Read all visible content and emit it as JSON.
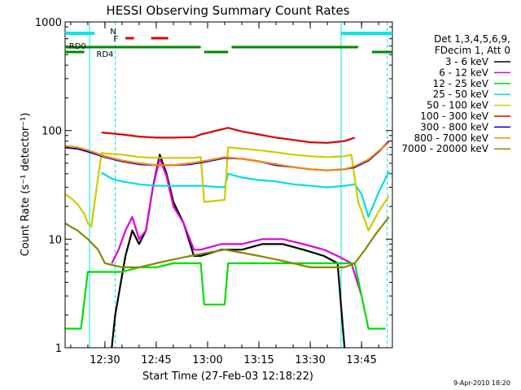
{
  "chart_data": {
    "type": "line",
    "title": "HESSI Observing Summary Count Rates",
    "xlabel": "Start Time (27-Feb-03 12:18:22)",
    "ylabel": "Count Rate (s⁻¹ detector⁻¹)",
    "y_scale": "log",
    "ylim": [
      1,
      1000
    ],
    "xlim": [
      "12:18:22",
      "13:54:00"
    ],
    "x_ticks": [
      "12:30",
      "12:45",
      "13:00",
      "13:15",
      "13:30",
      "13:45"
    ],
    "y_ticks": [
      "1",
      "10",
      "100",
      "1000"
    ],
    "grid": false,
    "legend_header": [
      "Det 1,3,4,5,6,9,",
      "FDecim 1, Att 0"
    ],
    "legend_position": "right",
    "footer_date": "9-Apr-2010 18:20",
    "flags": {
      "N_label": "N",
      "F_label": "F",
      "RD0_label": "RD0",
      "RD4_label": "RD4"
    },
    "series": [
      {
        "name": "3 - 6 keV",
        "color": "#000000",
        "points": [
          [
            "12:32:00",
            1
          ],
          [
            "12:33:00",
            2
          ],
          [
            "12:36:00",
            7
          ],
          [
            "12:38:00",
            12
          ],
          [
            "12:40:00",
            9
          ],
          [
            "12:42:00",
            12
          ],
          [
            "12:44:00",
            30
          ],
          [
            "12:46:00",
            60
          ],
          [
            "12:48:00",
            40
          ],
          [
            "12:50:00",
            22
          ],
          [
            "12:53:00",
            14
          ],
          [
            "12:56:00",
            7
          ],
          [
            "12:58:00",
            7
          ],
          [
            "13:04:00",
            8
          ],
          [
            "13:10:00",
            8
          ],
          [
            "13:16:00",
            9
          ],
          [
            "13:22:00",
            9
          ],
          [
            "13:28:00",
            8
          ],
          [
            "13:34:00",
            7
          ],
          [
            "13:38:00",
            6
          ],
          [
            "13:40:00",
            1
          ]
        ]
      },
      {
        "name": "6 - 12 keV",
        "color": "#dd00dd",
        "points": [
          [
            "12:32:00",
            6
          ],
          [
            "12:34:00",
            8
          ],
          [
            "12:36:00",
            12
          ],
          [
            "12:38:00",
            16
          ],
          [
            "12:40:00",
            10
          ],
          [
            "12:42:00",
            12
          ],
          [
            "12:44:00",
            30
          ],
          [
            "12:46:00",
            55
          ],
          [
            "12:48:00",
            38
          ],
          [
            "12:50:00",
            20
          ],
          [
            "12:53:00",
            14
          ],
          [
            "12:56:00",
            8
          ],
          [
            "12:58:00",
            8
          ],
          [
            "13:04:00",
            9
          ],
          [
            "13:10:00",
            9
          ],
          [
            "13:16:00",
            10
          ],
          [
            "13:22:00",
            10
          ],
          [
            "13:28:00",
            9
          ],
          [
            "13:34:00",
            8
          ],
          [
            "13:38:00",
            7
          ],
          [
            "13:42:00",
            6
          ],
          [
            "13:45:00",
            3
          ]
        ]
      },
      {
        "name": "12 - 25 keV",
        "color": "#00dd00",
        "points": [
          [
            "12:18:22",
            1.5
          ],
          [
            "12:23:00",
            1.5
          ],
          [
            "12:25:00",
            5
          ],
          [
            "12:30:00",
            5
          ],
          [
            "12:35:00",
            5
          ],
          [
            "12:40:00",
            5.5
          ],
          [
            "12:45:00",
            5.5
          ],
          [
            "12:50:00",
            6
          ],
          [
            "12:55:00",
            6
          ],
          [
            "12:58:00",
            6
          ],
          [
            "12:59:00",
            2.5
          ],
          [
            "13:05:00",
            2.5
          ],
          [
            "13:06:00",
            6
          ],
          [
            "13:15:00",
            6
          ],
          [
            "13:25:00",
            6
          ],
          [
            "13:35:00",
            6
          ],
          [
            "13:40:00",
            6
          ],
          [
            "13:43:00",
            6
          ],
          [
            "13:47:00",
            1.5
          ],
          [
            "13:52:00",
            1.5
          ]
        ]
      },
      {
        "name": "25 - 50 keV",
        "color": "#00dddd",
        "points": [
          [
            "12:29:00",
            41
          ],
          [
            "12:32:00",
            36
          ],
          [
            "12:35:00",
            34
          ],
          [
            "12:40:00",
            32
          ],
          [
            "12:45:00",
            31
          ],
          [
            "12:50:00",
            31
          ],
          [
            "12:56:00",
            31
          ],
          [
            "12:58:00",
            31
          ],
          [
            "13:05:00",
            30
          ],
          [
            "13:06:00",
            40
          ],
          [
            "13:10:00",
            37
          ],
          [
            "13:15:00",
            35
          ],
          [
            "13:20:00",
            34
          ],
          [
            "13:25:00",
            32
          ],
          [
            "13:30:00",
            31
          ],
          [
            "13:35:00",
            30
          ],
          [
            "13:40:00",
            31
          ],
          [
            "13:43:00",
            32
          ],
          [
            "13:45:00",
            26
          ],
          [
            "13:47:00",
            16
          ],
          [
            "13:50:00",
            27
          ],
          [
            "13:53:00",
            42
          ]
        ]
      },
      {
        "name": "50 - 100 keV",
        "color": "#cccc00",
        "points": [
          [
            "12:18:22",
            26
          ],
          [
            "12:20:00",
            24
          ],
          [
            "12:22:00",
            21
          ],
          [
            "12:24:00",
            17
          ],
          [
            "12:25:00",
            14
          ],
          [
            "12:26:00",
            13
          ],
          [
            "12:29:00",
            62
          ],
          [
            "12:35:00",
            60
          ],
          [
            "12:40:00",
            57
          ],
          [
            "12:45:00",
            56
          ],
          [
            "12:50:00",
            56
          ],
          [
            "12:56:00",
            56
          ],
          [
            "12:58:00",
            57
          ],
          [
            "12:59:00",
            22
          ],
          [
            "13:05:00",
            23
          ],
          [
            "13:06:00",
            70
          ],
          [
            "13:15:00",
            66
          ],
          [
            "13:20:00",
            63
          ],
          [
            "13:25:00",
            60
          ],
          [
            "13:30:00",
            58
          ],
          [
            "13:35:00",
            57
          ],
          [
            "13:40:00",
            58
          ],
          [
            "13:42:00",
            60
          ],
          [
            "13:44:00",
            22
          ],
          [
            "13:47:00",
            12
          ],
          [
            "13:50:00",
            18
          ],
          [
            "13:53:00",
            25
          ]
        ]
      },
      {
        "name": "100 - 300 keV",
        "color": "#dd0000",
        "points": [
          [
            "12:29:00",
            96
          ],
          [
            "12:35:00",
            92
          ],
          [
            "12:40:00",
            88
          ],
          [
            "12:45:00",
            86
          ],
          [
            "12:50:00",
            86
          ],
          [
            "12:56:00",
            87
          ],
          [
            "12:58:00",
            92
          ],
          [
            "13:06:00",
            106
          ],
          [
            "13:10:00",
            98
          ],
          [
            "13:15:00",
            92
          ],
          [
            "13:20:00",
            86
          ],
          [
            "13:25:00",
            82
          ],
          [
            "13:30:00",
            78
          ],
          [
            "13:35:00",
            77
          ],
          [
            "13:40:00",
            80
          ],
          [
            "13:43:00",
            86
          ]
        ]
      },
      {
        "name": "300 - 800 keV",
        "color": "#0000cc",
        "points": [
          [
            "12:18:22",
            70
          ],
          [
            "12:22:00",
            68
          ],
          [
            "12:25:00",
            64
          ],
          [
            "12:30:00",
            57
          ],
          [
            "12:35:00",
            52
          ],
          [
            "12:40:00",
            49
          ],
          [
            "12:45:00",
            48
          ],
          [
            "12:50:00",
            48
          ],
          [
            "12:55:00",
            49
          ],
          [
            "13:00:00",
            52
          ],
          [
            "13:05:00",
            56
          ],
          [
            "13:10:00",
            55
          ],
          [
            "13:15:00",
            52
          ],
          [
            "13:20:00",
            48
          ],
          [
            "13:25:00",
            46
          ],
          [
            "13:30:00",
            44
          ],
          [
            "13:35:00",
            43
          ],
          [
            "13:40:00",
            44
          ],
          [
            "13:43:00",
            46
          ],
          [
            "13:47:00",
            53
          ],
          [
            "13:50:00",
            64
          ],
          [
            "13:53:00",
            80
          ]
        ]
      },
      {
        "name": "800 - 7000 keV",
        "color": "#ff8800",
        "points": [
          [
            "12:18:22",
            72
          ],
          [
            "12:22:00",
            70
          ],
          [
            "12:25:00",
            66
          ],
          [
            "12:30:00",
            58
          ],
          [
            "12:35:00",
            53
          ],
          [
            "12:40:00",
            50
          ],
          [
            "12:45:00",
            48
          ],
          [
            "12:50:00",
            48
          ],
          [
            "12:55:00",
            50
          ],
          [
            "13:00:00",
            53
          ],
          [
            "13:05:00",
            57
          ],
          [
            "13:10:00",
            55
          ],
          [
            "13:15:00",
            52
          ],
          [
            "13:20:00",
            49
          ],
          [
            "13:25:00",
            46
          ],
          [
            "13:30:00",
            44
          ],
          [
            "13:35:00",
            43
          ],
          [
            "13:40:00",
            44
          ],
          [
            "13:43:00",
            47
          ],
          [
            "13:47:00",
            54
          ],
          [
            "13:50:00",
            65
          ],
          [
            "13:53:00",
            78
          ]
        ]
      },
      {
        "name": "7000 - 20000 keV",
        "color": "#888800",
        "points": [
          [
            "12:18:22",
            14
          ],
          [
            "12:20:00",
            13
          ],
          [
            "12:22:00",
            12
          ],
          [
            "12:25:00",
            10
          ],
          [
            "12:28:00",
            8
          ],
          [
            "12:30:00",
            6
          ],
          [
            "12:35:00",
            5.5
          ],
          [
            "12:40:00",
            5.5
          ],
          [
            "12:45:00",
            6
          ],
          [
            "12:50:00",
            6.5
          ],
          [
            "12:55:00",
            7
          ],
          [
            "13:00:00",
            7.5
          ],
          [
            "13:05:00",
            8
          ],
          [
            "13:10:00",
            7.5
          ],
          [
            "13:15:00",
            7
          ],
          [
            "13:20:00",
            6.5
          ],
          [
            "13:25:00",
            6
          ],
          [
            "13:30:00",
            5.5
          ],
          [
            "13:35:00",
            5.5
          ],
          [
            "13:40:00",
            5.5
          ],
          [
            "13:43:00",
            6
          ],
          [
            "13:46:00",
            8
          ],
          [
            "13:49:00",
            11
          ],
          [
            "13:53:00",
            16
          ]
        ]
      }
    ]
  }
}
